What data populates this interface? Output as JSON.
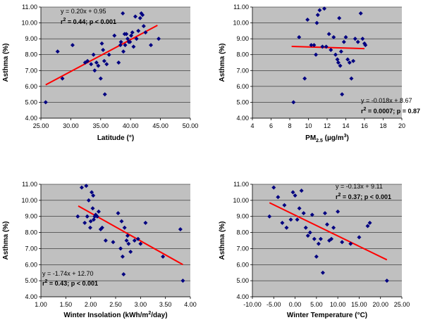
{
  "chart_data": [
    {
      "type": "scatter",
      "xlabel": "Latitude (°)",
      "ylabel": "Asthma (%)",
      "xlim": [
        25.0,
        50.0
      ],
      "ylim": [
        4.0,
        11.0
      ],
      "xticks": [
        "25.00",
        "30.00",
        "35.00",
        "40.00",
        "45.00",
        "50.00"
      ],
      "yticks": [
        "4.00",
        "5.00",
        "6.00",
        "7.00",
        "8.00",
        "9.00",
        "10.00",
        "11.00"
      ],
      "x_decimals": 2,
      "y_decimals": 2,
      "equation": "y = 0.20x + 0.95",
      "stats_r_label": "r",
      "stats_r_sup": "2",
      "stats_rest": " = 0.44; p < 0.001",
      "trendline": {
        "x": [
          25.8,
          44.5
        ],
        "y": [
          6.1,
          9.85
        ],
        "color": "#ff0000"
      },
      "point_color": "#000080",
      "plot_color": "#c0c0c0",
      "x": [
        25.8,
        27.8,
        28.6,
        30.3,
        32.4,
        32.8,
        33.4,
        33.8,
        34.0,
        34.3,
        34.6,
        35.0,
        35.2,
        35.4,
        35.6,
        35.7,
        36.0,
        36.4,
        37.3,
        38.0,
        38.3,
        38.4,
        38.7,
        38.8,
        39.0,
        39.1,
        39.3,
        39.5,
        39.7,
        39.9,
        40.1,
        40.3,
        40.5,
        40.8,
        41.0,
        41.3,
        41.6,
        41.8,
        42.0,
        42.2,
        42.5,
        43.4,
        44.7
      ],
      "y": [
        5.0,
        8.2,
        6.5,
        8.6,
        7.5,
        7.6,
        7.4,
        8.0,
        7.0,
        7.5,
        7.3,
        6.5,
        8.7,
        8.3,
        7.6,
        5.5,
        7.4,
        8.0,
        9.2,
        7.5,
        8.6,
        8.8,
        10.6,
        8.2,
        9.3,
        8.6,
        9.3,
        9.0,
        8.8,
        8.8,
        9.2,
        9.4,
        8.5,
        10.4,
        9.0,
        9.5,
        10.3,
        10.6,
        10.5,
        9.8,
        9.4,
        8.6,
        9.0
      ]
    },
    {
      "type": "scatter",
      "xlabel": "PM",
      "xlabel_sub": "2.5",
      "xlabel_unit_pre": " (µg/m",
      "xlabel_unit_sup": "3",
      "xlabel_unit_post": ")",
      "ylabel": "Asthma (%)",
      "xlim": [
        4,
        20
      ],
      "ylim": [
        4.0,
        11.0
      ],
      "xticks": [
        "4",
        "6",
        "8",
        "10",
        "12",
        "14",
        "16",
        "18",
        "20"
      ],
      "yticks": [
        "4.00",
        "5.00",
        "6.00",
        "7.00",
        "8.00",
        "9.00",
        "10.00",
        "11.00"
      ],
      "x_decimals": 0,
      "y_decimals": 2,
      "equation": "y = -0.018x + 8.67",
      "stats_r_label": "r",
      "stats_r_sup": "2",
      "stats_rest": " = 0.0007; p = 0.87",
      "trendline": {
        "x": [
          8.2,
          16.0
        ],
        "y": [
          8.52,
          8.38
        ],
        "color": "#ff0000"
      },
      "point_color": "#000080",
      "plot_color": "#c0c0c0",
      "x": [
        8.4,
        9.0,
        9.6,
        9.9,
        10.3,
        10.6,
        10.8,
        10.9,
        11.0,
        11.2,
        11.5,
        11.7,
        11.9,
        12.2,
        12.4,
        12.7,
        12.9,
        13.1,
        13.2,
        13.3,
        13.4,
        13.5,
        13.6,
        13.8,
        14.0,
        14.2,
        14.4,
        14.6,
        14.8,
        15.0,
        15.3,
        15.6,
        15.8,
        16.0,
        16.1
      ],
      "y": [
        5.0,
        9.1,
        6.5,
        10.2,
        8.6,
        8.6,
        8.0,
        10.0,
        10.5,
        10.8,
        8.5,
        10.9,
        8.5,
        9.3,
        8.3,
        9.1,
        8.0,
        7.7,
        7.5,
        10.3,
        7.3,
        8.2,
        5.5,
        8.8,
        9.1,
        7.7,
        7.5,
        6.5,
        7.6,
        9.0,
        8.8,
        10.6,
        9.0,
        8.7,
        8.6
      ]
    },
    {
      "type": "scatter",
      "xlabel": "Winter Insolation (kWh/m",
      "xlabel_unit_sup": "2",
      "xlabel_unit_post": "/day)",
      "ylabel": "Asthma (%)",
      "xlim": [
        1.0,
        4.0
      ],
      "ylim": [
        4.0,
        11.0
      ],
      "xticks": [
        "1.00",
        "1.50",
        "2.00",
        "2.50",
        "3.00",
        "3.50",
        "4.00"
      ],
      "yticks": [
        "4.00",
        "5.00",
        "6.00",
        "7.00",
        "8.00",
        "9.00",
        "10.00",
        "11.00"
      ],
      "x_decimals": 2,
      "y_decimals": 2,
      "equation": "y = -1.74x + 12.70",
      "stats_r_label": "r",
      "stats_r_sup": "2",
      "stats_rest": " = 0.43; p < 0.001",
      "trendline": {
        "x": [
          1.75,
          3.85
        ],
        "y": [
          9.65,
          6.0
        ],
        "color": "#ff0000"
      },
      "point_color": "#000080",
      "plot_color": "#c0c0c0",
      "x": [
        1.74,
        1.82,
        1.88,
        1.91,
        1.93,
        1.96,
        1.99,
        2.0,
        2.02,
        2.04,
        2.05,
        2.06,
        2.08,
        2.1,
        2.13,
        2.16,
        2.2,
        2.23,
        2.3,
        2.45,
        2.55,
        2.6,
        2.62,
        2.64,
        2.66,
        2.68,
        2.72,
        2.74,
        2.76,
        2.8,
        2.88,
        2.95,
        3.0,
        3.1,
        3.45,
        3.8,
        3.85
      ],
      "y": [
        9.0,
        10.8,
        8.6,
        10.9,
        9.0,
        10.0,
        8.3,
        8.7,
        10.5,
        9.5,
        10.3,
        8.8,
        9.0,
        9.1,
        9.0,
        9.3,
        8.2,
        8.3,
        7.5,
        7.4,
        9.2,
        7.0,
        8.7,
        6.5,
        5.4,
        8.3,
        7.5,
        7.8,
        7.3,
        6.8,
        7.5,
        7.6,
        7.3,
        8.6,
        6.5,
        8.2,
        5.0
      ]
    },
    {
      "type": "scatter",
      "xlabel": "Winter Temperature (°C)",
      "ylabel": "Asthma (%)",
      "xlim": [
        -10,
        25
      ],
      "ylim": [
        4.0,
        11.0
      ],
      "xticks": [
        "-10.00",
        "-5.00",
        "0.00",
        "5.00",
        "10.00",
        "15.00",
        "20.00",
        "25.00"
      ],
      "yticks": [
        "4.00",
        "5.00",
        "6.00",
        "7.00",
        "8.00",
        "9.00",
        "10.00",
        "11.00"
      ],
      "x_decimals": 2,
      "y_decimals": 2,
      "equation": "y = -0.13x + 9.11",
      "stats_r_label": "r",
      "stats_r_sup": "2",
      "stats_rest": " = 0.37; p < 0.001",
      "trendline": {
        "x": [
          -6.0,
          21.5
        ],
        "y": [
          9.85,
          6.3
        ],
        "color": "#ff0000"
      },
      "point_color": "#000080",
      "plot_color": "#c0c0c0",
      "x": [
        -6.0,
        -5.0,
        -4.0,
        -3.0,
        -2.5,
        -2.0,
        -1.0,
        -0.5,
        0.0,
        0.5,
        1.0,
        1.5,
        2.0,
        2.5,
        3.0,
        3.5,
        4.0,
        4.5,
        5.0,
        5.5,
        6.0,
        6.5,
        7.0,
        7.5,
        8.0,
        8.5,
        9.0,
        10.0,
        11.0,
        13.0,
        15.0,
        17.0,
        17.5,
        21.5
      ],
      "y": [
        9.0,
        10.8,
        10.2,
        8.6,
        9.7,
        8.3,
        8.8,
        10.5,
        10.3,
        8.8,
        9.5,
        10.6,
        9.2,
        8.3,
        7.8,
        8.0,
        9.1,
        7.6,
        6.5,
        7.3,
        7.6,
        5.5,
        9.2,
        8.5,
        7.5,
        7.6,
        8.3,
        9.3,
        7.4,
        7.3,
        7.7,
        8.4,
        8.6,
        5.0
      ]
    }
  ]
}
